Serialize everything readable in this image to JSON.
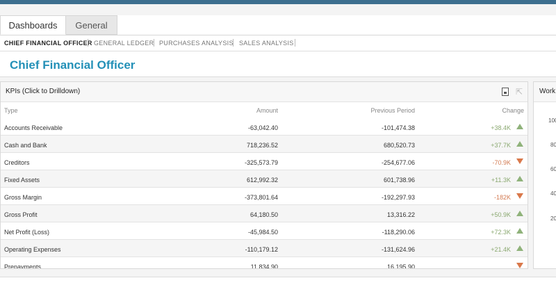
{
  "tabs": [
    {
      "label": "Dashboards",
      "active": true
    },
    {
      "label": "General",
      "active": false
    }
  ],
  "subnav": [
    {
      "label": "CHIEF FINANCIAL OFFICER",
      "active": true
    },
    {
      "label": "GENERAL LEDGER",
      "active": false
    },
    {
      "label": "PURCHASES ANALYSIS",
      "active": false
    },
    {
      "label": "SALES ANALYSIS",
      "active": false
    }
  ],
  "page_title": "Chief Financial Officer",
  "kpi_panel": {
    "title": "KPIs (Click to Drilldown)",
    "icons": [
      "export-icon",
      "drill-up-icon"
    ],
    "columns": {
      "type": "Type",
      "amount": "Amount",
      "previous": "Previous Period",
      "change": "Change"
    },
    "rows": [
      {
        "type": "Accounts Receivable",
        "amount": "-63,042.40",
        "previous": "-101,474.38",
        "change": "+38.4K",
        "trend": "up"
      },
      {
        "type": "Cash and Bank",
        "amount": "718,236.52",
        "previous": "680,520.73",
        "change": "+37.7K",
        "trend": "up"
      },
      {
        "type": "Creditors",
        "amount": "-325,573.79",
        "previous": "-254,677.06",
        "change": "-70.9K",
        "trend": "down"
      },
      {
        "type": "Fixed Assets",
        "amount": "612,992.32",
        "previous": "601,738.96",
        "change": "+11.3K",
        "trend": "up"
      },
      {
        "type": "Gross Margin",
        "amount": "-373,801.64",
        "previous": "-192,297.93",
        "change": "-182K",
        "trend": "down"
      },
      {
        "type": "Gross Profit",
        "amount": "64,180.50",
        "previous": "13,316.22",
        "change": "+50.9K",
        "trend": "up"
      },
      {
        "type": "Net Profit (Loss)",
        "amount": "-45,984.50",
        "previous": "-118,290.06",
        "change": "+72.3K",
        "trend": "up"
      },
      {
        "type": "Operating Expenses",
        "amount": "-110,179.12",
        "previous": "-131,624.96",
        "change": "+21.4K",
        "trend": "up"
      },
      {
        "type": "Prepayments",
        "amount": "11,834.90",
        "previous": "16,195.90",
        "change": "",
        "trend": "down"
      }
    ]
  },
  "side_panel": {
    "title": "Work",
    "ticks": [
      "100",
      "80",
      "60",
      "40",
      "20"
    ]
  },
  "colors": {
    "accent": "#2390b7",
    "topbar": "#3d6f8f",
    "up": "#8fb27a",
    "down": "#d9784a"
  }
}
